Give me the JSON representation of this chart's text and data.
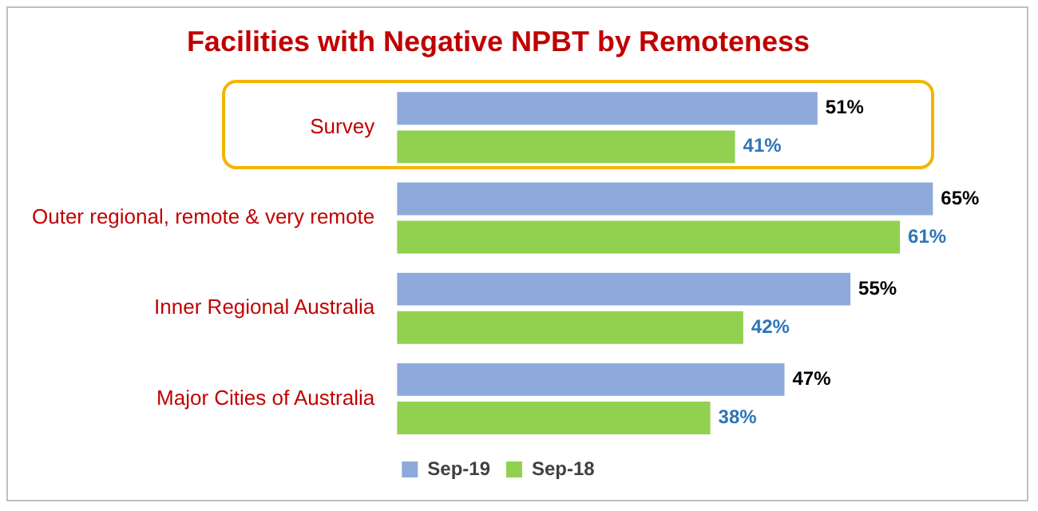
{
  "chart_data": {
    "type": "bar",
    "orientation": "horizontal",
    "title": "Facilities with Negative NPBT by Remoteness",
    "categories": [
      "Survey",
      "Outer regional, remote & very remote",
      "Inner Regional Australia",
      "Major Cities of Australia"
    ],
    "series": [
      {
        "name": "Sep-19",
        "color": "#8eaadb",
        "values": [
          51,
          65,
          55,
          47
        ],
        "value_labels": [
          "51%",
          "65%",
          "55%",
          "47%"
        ]
      },
      {
        "name": "Sep-18",
        "color": "#92d050",
        "values": [
          41,
          61,
          42,
          38
        ],
        "value_labels": [
          "41%",
          "61%",
          "42%",
          "38%"
        ]
      }
    ],
    "legend": "bottom"
  }
}
